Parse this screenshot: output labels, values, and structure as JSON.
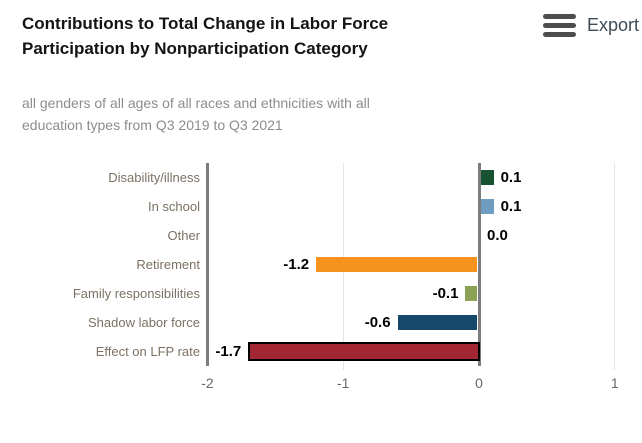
{
  "header": {
    "title": "Contributions to Total Change in Labor Force Participation by Nonparticipation Category",
    "subtitle": "all genders of all ages of all races and ethnicities with all education types from Q3 2019 to Q3 2021",
    "export_label": "Export"
  },
  "chart_data": {
    "type": "bar",
    "orientation": "horizontal",
    "title": "Contributions to Total Change in Labor Force Participation by Nonparticipation Category",
    "subtitle": "all genders of all ages of all races and ethnicities with all education types from Q3 2019 to Q3 2021",
    "categories": [
      "Disability/illness",
      "In school",
      "Other",
      "Retirement",
      "Family responsibilities",
      "Shadow labor force",
      "Effect on LFP rate"
    ],
    "values": [
      0.1,
      0.1,
      0.0,
      -1.2,
      -0.1,
      -0.6,
      -1.7
    ],
    "value_labels": [
      "0.1",
      "0.1",
      "0.0",
      "-1.2",
      "-0.1",
      "-0.6",
      "-1.7"
    ],
    "bar_colors": [
      "#175231",
      "#6f9dbf",
      null,
      "#f6921e",
      "#8ba154",
      "#15486b",
      "#a32733"
    ],
    "highlight_border": [
      false,
      false,
      false,
      false,
      false,
      false,
      true
    ],
    "xlim": [
      -2,
      1
    ],
    "x_ticks": [
      -2,
      -1,
      0,
      1
    ],
    "x_tick_labels": [
      "-2",
      "-1",
      "0",
      "1"
    ],
    "xlabel": "",
    "ylabel": "",
    "grid": "vertical-light",
    "legend": "none"
  }
}
